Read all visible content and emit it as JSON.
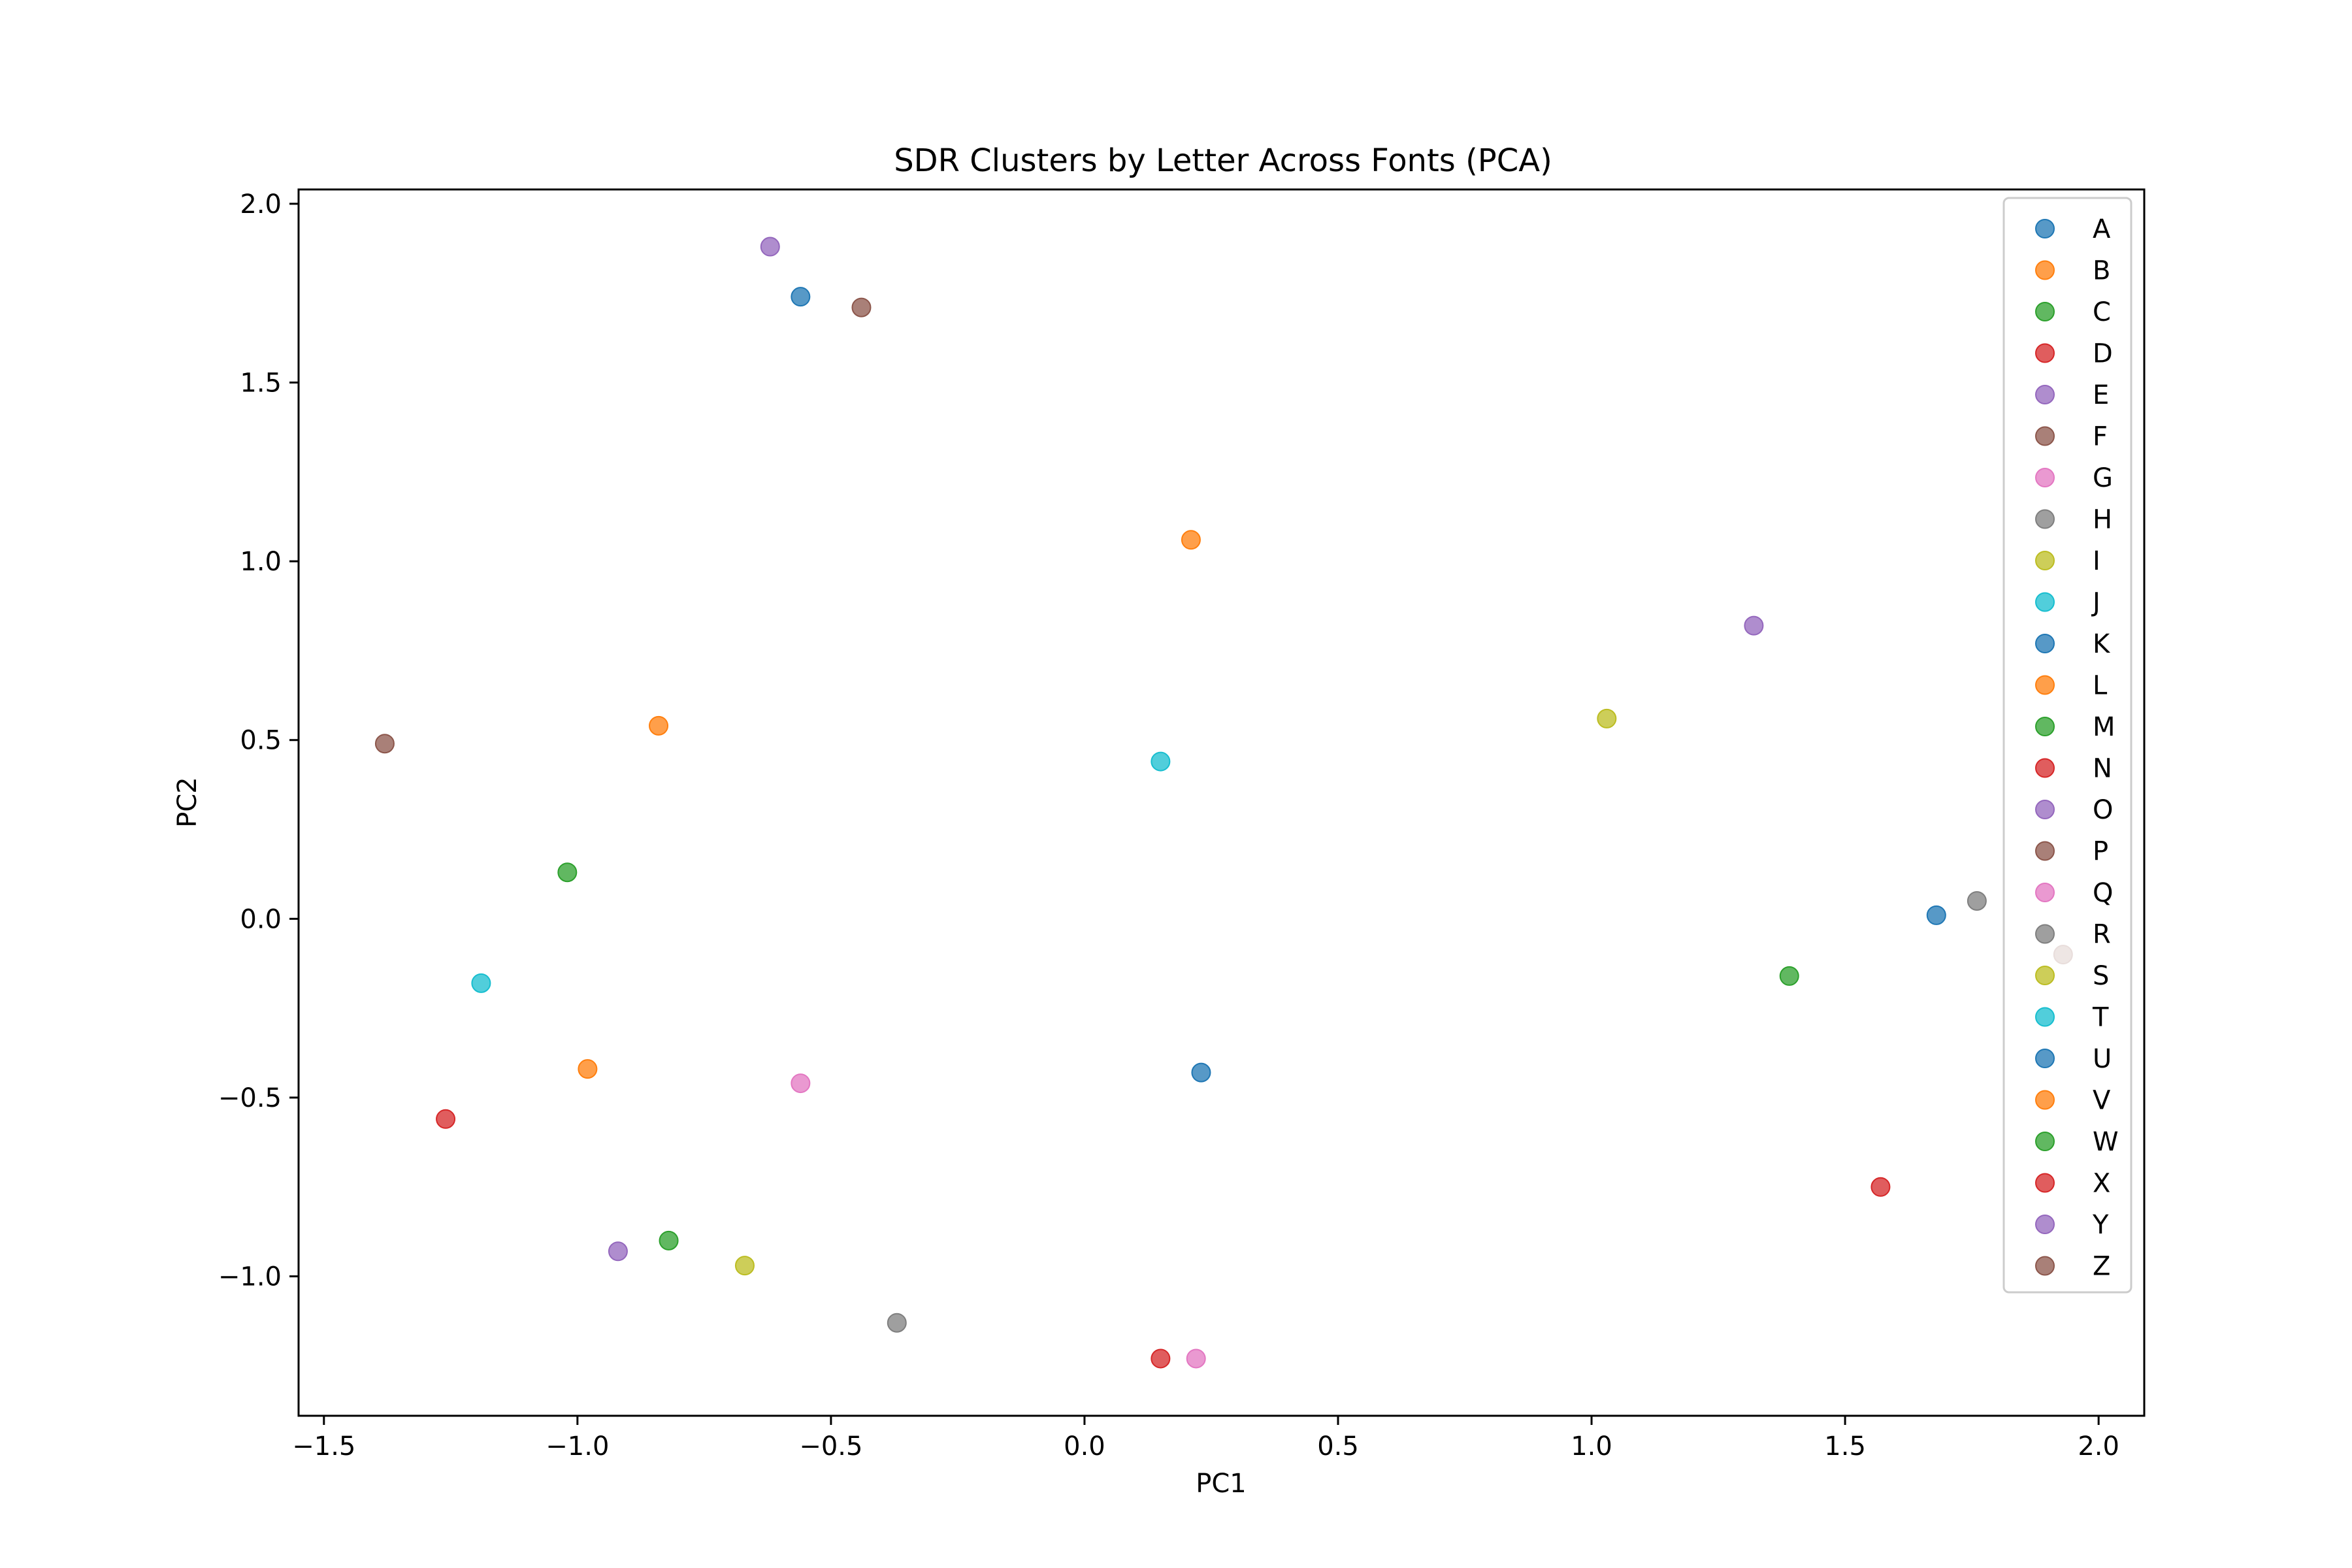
{
  "chart_data": {
    "type": "scatter",
    "title": "SDR Clusters by Letter Across Fonts (PCA)",
    "xlabel": "PC1",
    "ylabel": "PC2",
    "xlim": [
      -1.55,
      2.09
    ],
    "ylim": [
      -1.39,
      2.04
    ],
    "xticks": [
      -1.5,
      -1.0,
      -0.5,
      0.0,
      0.5,
      1.0,
      1.5,
      2.0
    ],
    "xtick_labels": [
      "−1.5",
      "−1.0",
      "−0.5",
      "0.0",
      "0.5",
      "1.0",
      "1.5",
      "2.0"
    ],
    "yticks": [
      -1.0,
      -0.5,
      0.0,
      0.5,
      1.0,
      1.5,
      2.0
    ],
    "ytick_labels": [
      "−1.0",
      "−0.5",
      "0.0",
      "0.5",
      "1.0",
      "1.5",
      "2.0"
    ],
    "grid": false,
    "legend_position": "top-right",
    "marker_alpha": 0.75,
    "series": [
      {
        "name": "A",
        "color": "#1f77b4",
        "x": -0.56,
        "y": 1.74
      },
      {
        "name": "B",
        "color": "#ff7f0e",
        "x": 0.21,
        "y": 1.06
      },
      {
        "name": "C",
        "color": "#2ca02c",
        "x": 1.39,
        "y": -0.16
      },
      {
        "name": "D",
        "color": "#d62728",
        "x": 1.57,
        "y": -0.75
      },
      {
        "name": "E",
        "color": "#9467bd",
        "x": -0.62,
        "y": 1.88
      },
      {
        "name": "F",
        "color": "#8c564b",
        "x": -1.38,
        "y": 0.49
      },
      {
        "name": "G",
        "color": "#e377c2",
        "x": 0.22,
        "y": -1.23
      },
      {
        "name": "H",
        "color": "#7f7f7f",
        "x": 1.76,
        "y": 0.05
      },
      {
        "name": "I",
        "color": "#bcbd22",
        "x": -0.67,
        "y": -0.97
      },
      {
        "name": "J",
        "color": "#17becf",
        "x": 0.15,
        "y": 0.44
      },
      {
        "name": "K",
        "color": "#1f77b4",
        "x": 1.68,
        "y": 0.01
      },
      {
        "name": "L",
        "color": "#ff7f0e",
        "x": -0.84,
        "y": 0.54
      },
      {
        "name": "M",
        "color": "#2ca02c",
        "x": -1.02,
        "y": 0.13
      },
      {
        "name": "N",
        "color": "#d62728",
        "x": -1.26,
        "y": -0.56
      },
      {
        "name": "O",
        "color": "#9467bd",
        "x": 1.32,
        "y": 0.82
      },
      {
        "name": "P",
        "color": "#8c564b",
        "x": -0.44,
        "y": 1.71
      },
      {
        "name": "Q",
        "color": "#e377c2",
        "x": -0.56,
        "y": -0.46
      },
      {
        "name": "R",
        "color": "#7f7f7f",
        "x": -0.37,
        "y": -1.13
      },
      {
        "name": "S",
        "color": "#bcbd22",
        "x": 1.03,
        "y": 0.56
      },
      {
        "name": "T",
        "color": "#17becf",
        "x": -1.19,
        "y": -0.18
      },
      {
        "name": "U",
        "color": "#1f77b4",
        "x": 0.23,
        "y": -0.43
      },
      {
        "name": "V",
        "color": "#ff7f0e",
        "x": -0.98,
        "y": -0.42
      },
      {
        "name": "W",
        "color": "#2ca02c",
        "x": -0.82,
        "y": -0.9
      },
      {
        "name": "X",
        "color": "#d62728",
        "x": 0.15,
        "y": -1.23
      },
      {
        "name": "Y",
        "color": "#9467bd",
        "x": -0.92,
        "y": -0.93
      },
      {
        "name": "Z",
        "color": "#8c564b",
        "x": 1.93,
        "y": -0.1
      }
    ]
  }
}
